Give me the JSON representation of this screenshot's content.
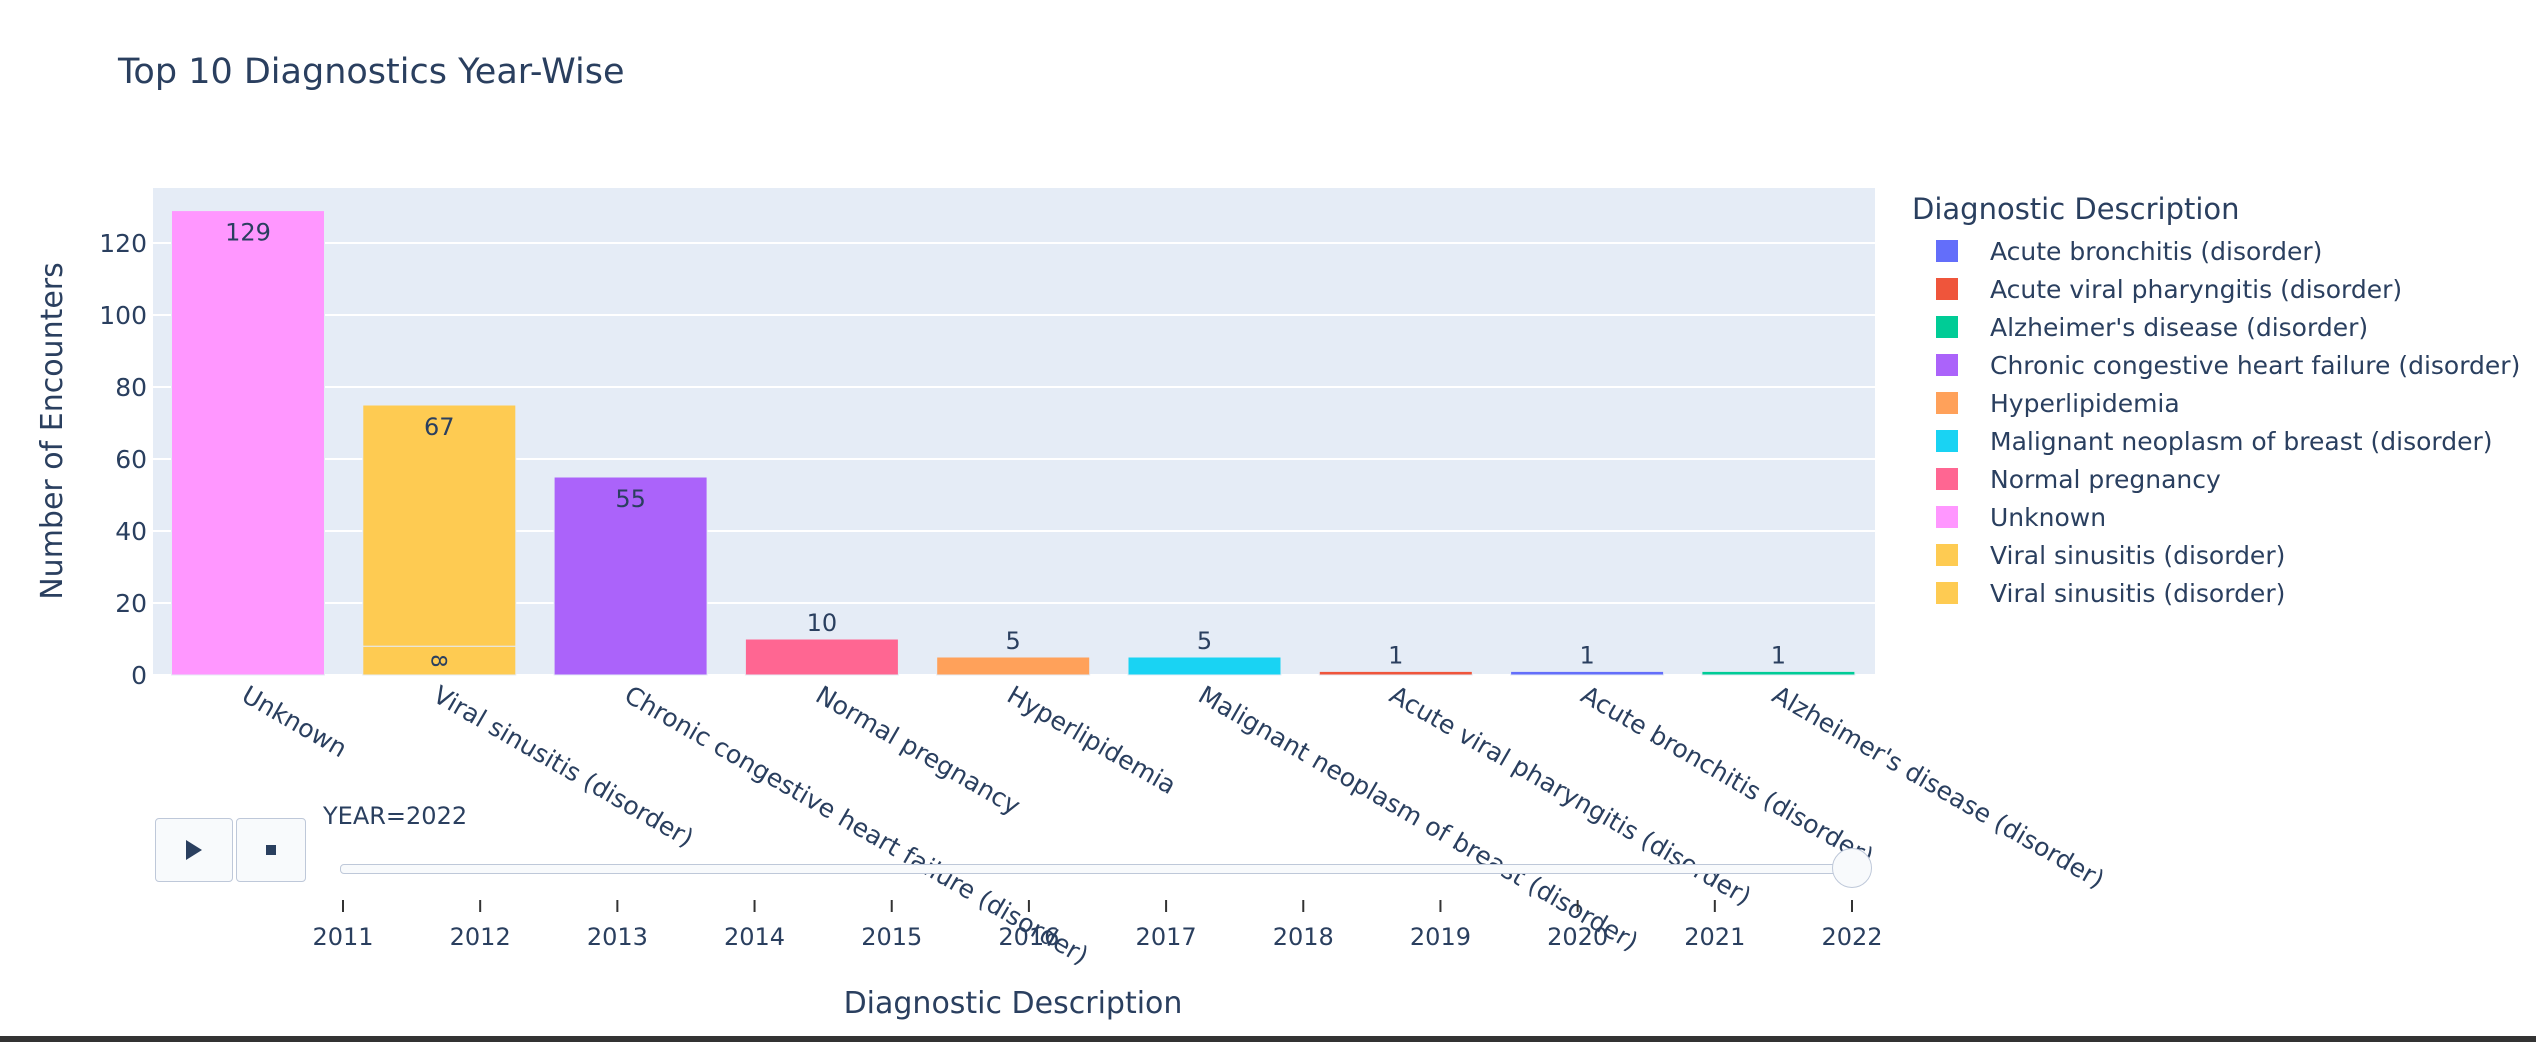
{
  "title": "Top 10 Diagnostics Year-Wise",
  "legend": {
    "title": "Diagnostic Description",
    "items": [
      {
        "label": "Acute bronchitis (disorder)",
        "color": "#636efa"
      },
      {
        "label": "Acute viral pharyngitis (disorder)",
        "color": "#EF553B"
      },
      {
        "label": "Alzheimer's disease (disorder)",
        "color": "#00cc96"
      },
      {
        "label": "Chronic congestive heart failure (disorder)",
        "color": "#ab63fa"
      },
      {
        "label": "Hyperlipidemia",
        "color": "#FFA15A"
      },
      {
        "label": "Malignant neoplasm of breast (disorder)",
        "color": "#19d3f3"
      },
      {
        "label": "Normal pregnancy",
        "color": "#FF6692"
      },
      {
        "label": "Unknown",
        "color": "#FF97FF"
      },
      {
        "label": "Viral sinusitis (disorder)",
        "color": "#FECB52"
      },
      {
        "label": "Viral sinusitis (disorder)",
        "color": "#FECB52"
      }
    ]
  },
  "slider": {
    "current_label": "YEAR=2022",
    "years": [
      "2011",
      "2012",
      "2013",
      "2014",
      "2015",
      "2016",
      "2017",
      "2018",
      "2019",
      "2020",
      "2021",
      "2022"
    ],
    "selected_index": 11
  },
  "controls": {
    "play_icon": "play-icon",
    "stop_icon": "stop-icon"
  },
  "chart_data": {
    "type": "bar",
    "title": "Top 10 Diagnostics Year-Wise",
    "xlabel": "Diagnostic Description",
    "ylabel": "Number of Encounters",
    "ylim": [
      0,
      135
    ],
    "yticks": [
      0,
      20,
      40,
      60,
      80,
      100,
      120
    ],
    "grid": true,
    "legend_position": "right",
    "categories": [
      "Unknown",
      "Viral sinusitis (disorder)",
      "Chronic congestive heart failure (disorder)",
      "Normal pregnancy",
      "Hyperlipidemia",
      "Malignant neoplasm of breast (disorder)",
      "Acute viral pharyngitis (disorder)",
      "Acute bronchitis (disorder)",
      "Alzheimer's disease (disorder)"
    ],
    "bars": [
      {
        "category": "Unknown",
        "segments": [
          {
            "value": 129,
            "label": "129",
            "color": "#FF97FF"
          }
        ]
      },
      {
        "category": "Viral sinusitis (disorder)",
        "segments": [
          {
            "value": 8,
            "label": "8",
            "color": "#FECB52"
          },
          {
            "value": 67,
            "label": "67",
            "color": "#FECB52"
          }
        ]
      },
      {
        "category": "Chronic congestive heart failure (disorder)",
        "segments": [
          {
            "value": 55,
            "label": "55",
            "color": "#ab63fa"
          }
        ]
      },
      {
        "category": "Normal pregnancy",
        "segments": [
          {
            "value": 10,
            "label": "10",
            "color": "#FF6692"
          }
        ]
      },
      {
        "category": "Hyperlipidemia",
        "segments": [
          {
            "value": 5,
            "label": "5",
            "color": "#FFA15A"
          }
        ]
      },
      {
        "category": "Malignant neoplasm of breast (disorder)",
        "segments": [
          {
            "value": 5,
            "label": "5",
            "color": "#19d3f3"
          }
        ]
      },
      {
        "category": "Acute viral pharyngitis (disorder)",
        "segments": [
          {
            "value": 1,
            "label": "1",
            "color": "#EF553B"
          }
        ]
      },
      {
        "category": "Acute bronchitis (disorder)",
        "segments": [
          {
            "value": 1,
            "label": "1",
            "color": "#636efa"
          }
        ]
      },
      {
        "category": "Alzheimer's disease (disorder)",
        "segments": [
          {
            "value": 1,
            "label": "1",
            "color": "#00cc96"
          }
        ]
      }
    ]
  }
}
